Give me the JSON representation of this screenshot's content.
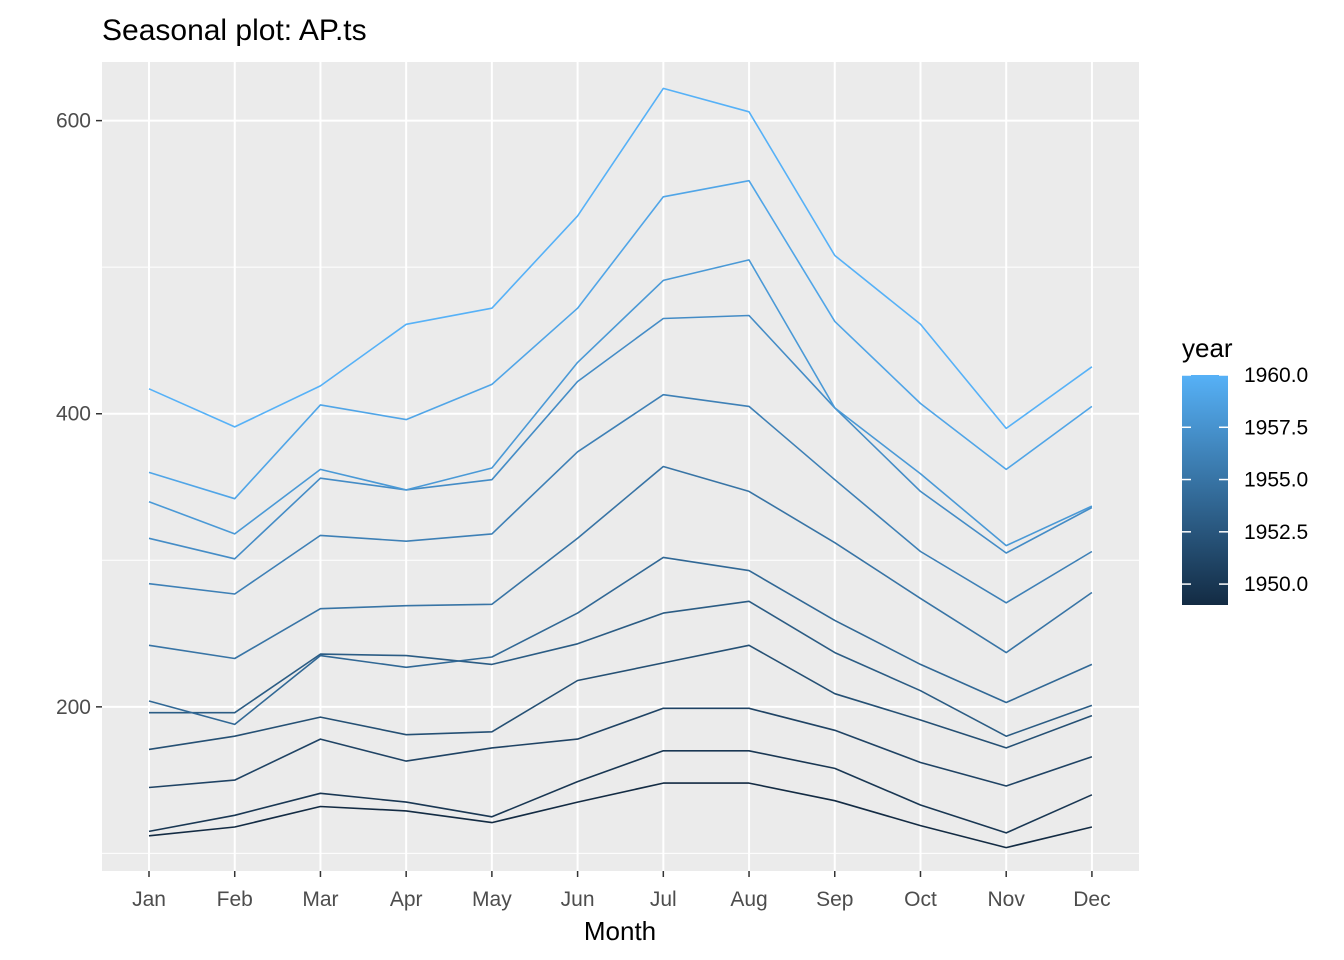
{
  "chart_data": {
    "type": "line",
    "title": "Seasonal plot: AP.ts",
    "xlabel": "Month",
    "ylabel": "",
    "categories": [
      "Jan",
      "Feb",
      "Mar",
      "Apr",
      "May",
      "Jun",
      "Jul",
      "Aug",
      "Sep",
      "Oct",
      "Nov",
      "Dec"
    ],
    "ylim": [
      88,
      640
    ],
    "y_ticks": [
      200,
      400,
      600
    ],
    "grid": true,
    "panel_background": "#ebebeb",
    "series": [
      {
        "year": 1949,
        "values": [
          112,
          118,
          132,
          129,
          121,
          135,
          148,
          148,
          136,
          119,
          104,
          118
        ]
      },
      {
        "year": 1950,
        "values": [
          115,
          126,
          141,
          135,
          125,
          149,
          170,
          170,
          158,
          133,
          114,
          140
        ]
      },
      {
        "year": 1951,
        "values": [
          145,
          150,
          178,
          163,
          172,
          178,
          199,
          199,
          184,
          162,
          146,
          166
        ]
      },
      {
        "year": 1952,
        "values": [
          171,
          180,
          193,
          181,
          183,
          218,
          230,
          242,
          209,
          191,
          172,
          194
        ]
      },
      {
        "year": 1953,
        "values": [
          196,
          196,
          236,
          235,
          229,
          243,
          264,
          272,
          237,
          211,
          180,
          201
        ]
      },
      {
        "year": 1954,
        "values": [
          204,
          188,
          235,
          227,
          234,
          264,
          302,
          293,
          259,
          229,
          203,
          229
        ]
      },
      {
        "year": 1955,
        "values": [
          242,
          233,
          267,
          269,
          270,
          315,
          364,
          347,
          312,
          274,
          237,
          278
        ]
      },
      {
        "year": 1956,
        "values": [
          284,
          277,
          317,
          313,
          318,
          374,
          413,
          405,
          355,
          306,
          271,
          306
        ]
      },
      {
        "year": 1957,
        "values": [
          315,
          301,
          356,
          348,
          355,
          422,
          465,
          467,
          404,
          347,
          305,
          336
        ]
      },
      {
        "year": 1958,
        "values": [
          340,
          318,
          362,
          348,
          363,
          435,
          491,
          505,
          404,
          359,
          310,
          337
        ]
      },
      {
        "year": 1959,
        "values": [
          360,
          342,
          406,
          396,
          420,
          472,
          548,
          559,
          463,
          407,
          362,
          405
        ]
      },
      {
        "year": 1960,
        "values": [
          417,
          391,
          419,
          461,
          472,
          535,
          622,
          606,
          508,
          461,
          390,
          432
        ]
      }
    ],
    "legend": {
      "title": "year",
      "position": "right",
      "labels": [
        "1960.0",
        "1957.5",
        "1955.0",
        "1952.5",
        "1950.0"
      ],
      "values": [
        1960,
        1957.5,
        1955,
        1952.5,
        1950
      ],
      "range": [
        1949,
        1960
      ],
      "color_low": "#132b43",
      "color_high": "#56b1f7"
    }
  }
}
